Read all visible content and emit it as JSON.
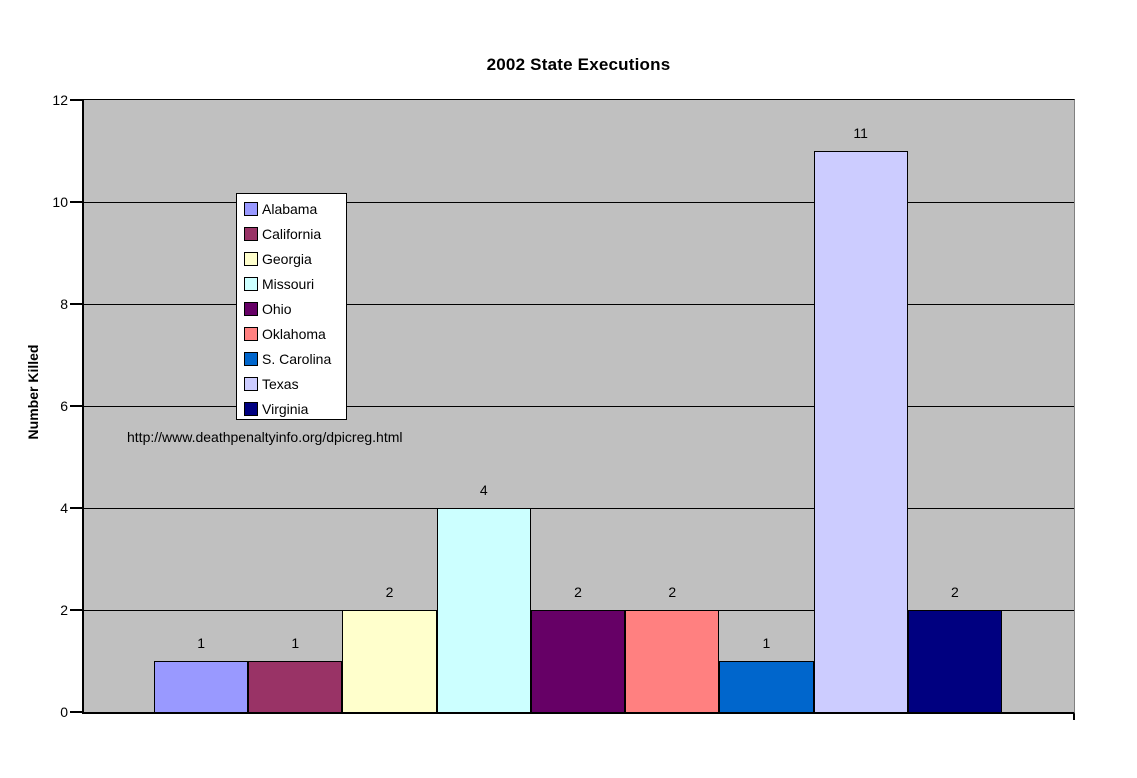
{
  "title": "2002 State Executions",
  "annotation": "http://www.deathpenaltyinfo.org/dpicreg.html",
  "chart_data": {
    "type": "bar",
    "title": "2002 State Executions",
    "xlabel": "",
    "ylabel": "Number Killed",
    "ylim": [
      0,
      12
    ],
    "ytick_interval": 2,
    "yticks": [
      0,
      2,
      4,
      6,
      8,
      10,
      12
    ],
    "grid": true,
    "gridline_color": "#000000",
    "plot_background": "#C0C0C0",
    "legend_position": "inside-upper-left",
    "annotation": "http://www.deathpenaltyinfo.org/dpicreg.html",
    "series": [
      {
        "name": "Alabama",
        "value": 1,
        "color": "#9999FF"
      },
      {
        "name": "California",
        "value": 1,
        "color": "#993366"
      },
      {
        "name": "Georgia",
        "value": 2,
        "color": "#FFFFCC"
      },
      {
        "name": "Missouri",
        "value": 4,
        "color": "#CCFFFF"
      },
      {
        "name": "Ohio",
        "value": 2,
        "color": "#660066"
      },
      {
        "name": "Oklahoma",
        "value": 2,
        "color": "#FF8080"
      },
      {
        "name": "S. Carolina",
        "value": 1,
        "color": "#0066CC"
      },
      {
        "name": "Texas",
        "value": 11,
        "color": "#CCCCFF"
      },
      {
        "name": "Virginia",
        "value": 2,
        "color": "#000080"
      }
    ],
    "data_labels_shown": true
  },
  "colors": {
    "chart_background": "#FFFFFF",
    "plot_background": "#C0C0C0",
    "axis": "#000000",
    "plot_right_border": "#808080",
    "text": "#000000",
    "legend_background": "#FFFFFF"
  }
}
